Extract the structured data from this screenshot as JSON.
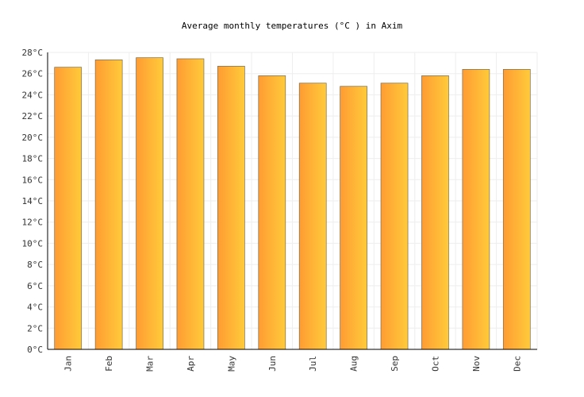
{
  "chart_data": {
    "type": "bar",
    "title": "Average monthly temperatures (°C ) in Axim",
    "categories": [
      "Jan",
      "Feb",
      "Mar",
      "Apr",
      "May",
      "Jun",
      "Jul",
      "Aug",
      "Sep",
      "Oct",
      "Nov",
      "Dec"
    ],
    "values": [
      26.6,
      27.3,
      27.5,
      27.4,
      26.7,
      25.8,
      25.1,
      24.8,
      25.1,
      25.8,
      26.4,
      26.4
    ],
    "ylim": [
      0,
      28
    ],
    "yticks": [
      "0°C",
      "2°C",
      "4°C",
      "6°C",
      "8°C",
      "10°C",
      "12°C",
      "14°C",
      "16°C",
      "18°C",
      "20°C",
      "22°C",
      "24°C",
      "26°C",
      "28°C"
    ],
    "grid": true,
    "colors": {
      "bar_start": "#ff9c33",
      "bar_end": "#ffcb3a",
      "bar_stroke": "#7a6a50",
      "grid": "#eeeeee",
      "axis": "#000000"
    }
  }
}
